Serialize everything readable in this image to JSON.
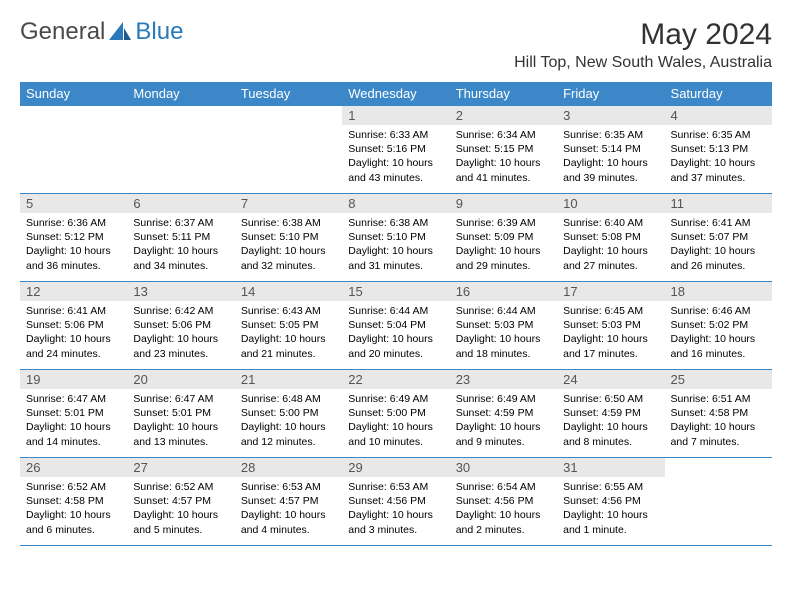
{
  "brand": {
    "part1": "General",
    "part2": "Blue"
  },
  "title": "May 2024",
  "location": "Hill Top, New South Wales, Australia",
  "colors": {
    "header_bg": "#3b87c8",
    "header_text": "#ffffff",
    "daynum_bg": "#e8e8e8",
    "border": "#3b87c8",
    "brand_blue": "#2a7ab9"
  },
  "weekdays": [
    "Sunday",
    "Monday",
    "Tuesday",
    "Wednesday",
    "Thursday",
    "Friday",
    "Saturday"
  ],
  "weeks": [
    [
      null,
      null,
      null,
      {
        "n": "1",
        "sr": "6:33 AM",
        "ss": "5:16 PM",
        "dl": "10 hours and 43 minutes."
      },
      {
        "n": "2",
        "sr": "6:34 AM",
        "ss": "5:15 PM",
        "dl": "10 hours and 41 minutes."
      },
      {
        "n": "3",
        "sr": "6:35 AM",
        "ss": "5:14 PM",
        "dl": "10 hours and 39 minutes."
      },
      {
        "n": "4",
        "sr": "6:35 AM",
        "ss": "5:13 PM",
        "dl": "10 hours and 37 minutes."
      }
    ],
    [
      {
        "n": "5",
        "sr": "6:36 AM",
        "ss": "5:12 PM",
        "dl": "10 hours and 36 minutes."
      },
      {
        "n": "6",
        "sr": "6:37 AM",
        "ss": "5:11 PM",
        "dl": "10 hours and 34 minutes."
      },
      {
        "n": "7",
        "sr": "6:38 AM",
        "ss": "5:10 PM",
        "dl": "10 hours and 32 minutes."
      },
      {
        "n": "8",
        "sr": "6:38 AM",
        "ss": "5:10 PM",
        "dl": "10 hours and 31 minutes."
      },
      {
        "n": "9",
        "sr": "6:39 AM",
        "ss": "5:09 PM",
        "dl": "10 hours and 29 minutes."
      },
      {
        "n": "10",
        "sr": "6:40 AM",
        "ss": "5:08 PM",
        "dl": "10 hours and 27 minutes."
      },
      {
        "n": "11",
        "sr": "6:41 AM",
        "ss": "5:07 PM",
        "dl": "10 hours and 26 minutes."
      }
    ],
    [
      {
        "n": "12",
        "sr": "6:41 AM",
        "ss": "5:06 PM",
        "dl": "10 hours and 24 minutes."
      },
      {
        "n": "13",
        "sr": "6:42 AM",
        "ss": "5:06 PM",
        "dl": "10 hours and 23 minutes."
      },
      {
        "n": "14",
        "sr": "6:43 AM",
        "ss": "5:05 PM",
        "dl": "10 hours and 21 minutes."
      },
      {
        "n": "15",
        "sr": "6:44 AM",
        "ss": "5:04 PM",
        "dl": "10 hours and 20 minutes."
      },
      {
        "n": "16",
        "sr": "6:44 AM",
        "ss": "5:03 PM",
        "dl": "10 hours and 18 minutes."
      },
      {
        "n": "17",
        "sr": "6:45 AM",
        "ss": "5:03 PM",
        "dl": "10 hours and 17 minutes."
      },
      {
        "n": "18",
        "sr": "6:46 AM",
        "ss": "5:02 PM",
        "dl": "10 hours and 16 minutes."
      }
    ],
    [
      {
        "n": "19",
        "sr": "6:47 AM",
        "ss": "5:01 PM",
        "dl": "10 hours and 14 minutes."
      },
      {
        "n": "20",
        "sr": "6:47 AM",
        "ss": "5:01 PM",
        "dl": "10 hours and 13 minutes."
      },
      {
        "n": "21",
        "sr": "6:48 AM",
        "ss": "5:00 PM",
        "dl": "10 hours and 12 minutes."
      },
      {
        "n": "22",
        "sr": "6:49 AM",
        "ss": "5:00 PM",
        "dl": "10 hours and 10 minutes."
      },
      {
        "n": "23",
        "sr": "6:49 AM",
        "ss": "4:59 PM",
        "dl": "10 hours and 9 minutes."
      },
      {
        "n": "24",
        "sr": "6:50 AM",
        "ss": "4:59 PM",
        "dl": "10 hours and 8 minutes."
      },
      {
        "n": "25",
        "sr": "6:51 AM",
        "ss": "4:58 PM",
        "dl": "10 hours and 7 minutes."
      }
    ],
    [
      {
        "n": "26",
        "sr": "6:52 AM",
        "ss": "4:58 PM",
        "dl": "10 hours and 6 minutes."
      },
      {
        "n": "27",
        "sr": "6:52 AM",
        "ss": "4:57 PM",
        "dl": "10 hours and 5 minutes."
      },
      {
        "n": "28",
        "sr": "6:53 AM",
        "ss": "4:57 PM",
        "dl": "10 hours and 4 minutes."
      },
      {
        "n": "29",
        "sr": "6:53 AM",
        "ss": "4:56 PM",
        "dl": "10 hours and 3 minutes."
      },
      {
        "n": "30",
        "sr": "6:54 AM",
        "ss": "4:56 PM",
        "dl": "10 hours and 2 minutes."
      },
      {
        "n": "31",
        "sr": "6:55 AM",
        "ss": "4:56 PM",
        "dl": "10 hours and 1 minute."
      },
      null
    ]
  ],
  "labels": {
    "sunrise": "Sunrise:",
    "sunset": "Sunset:",
    "daylight": "Daylight:"
  }
}
